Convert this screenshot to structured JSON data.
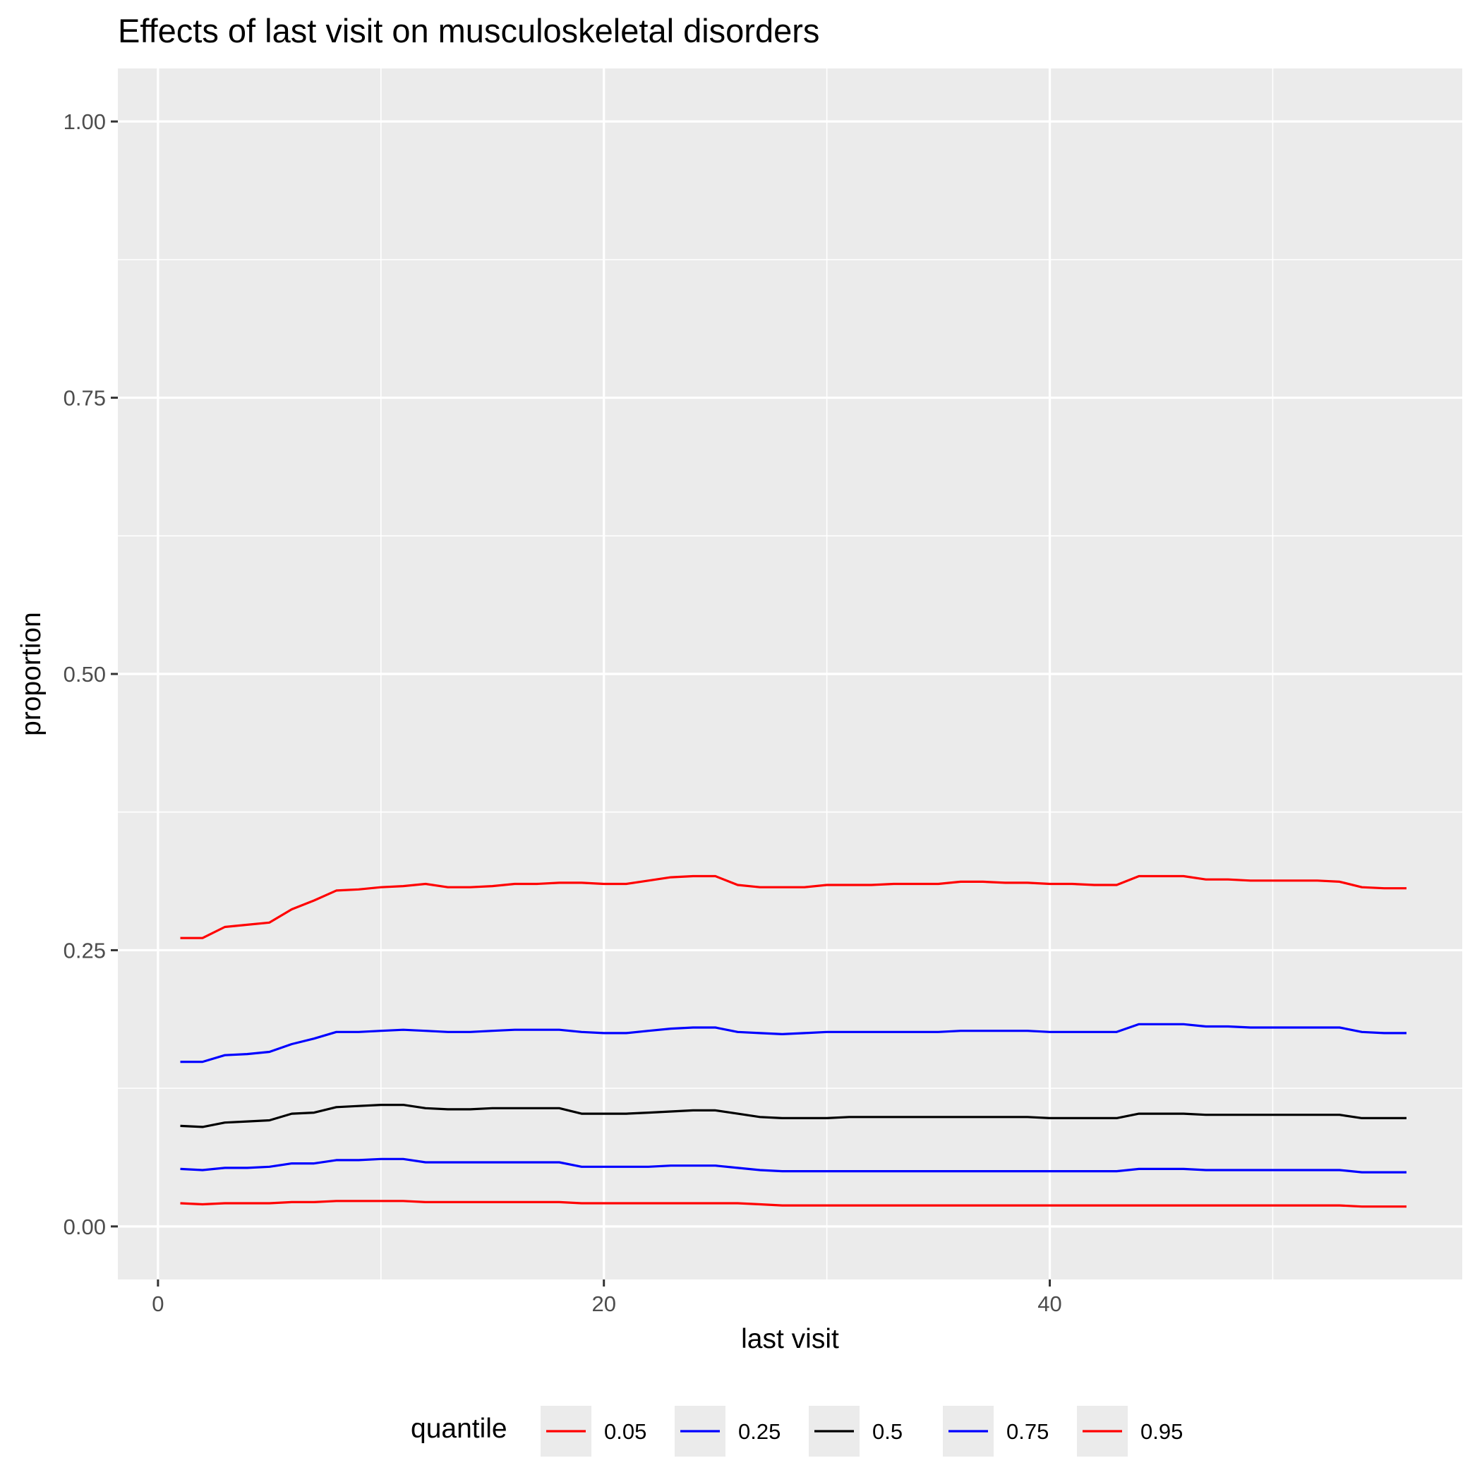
{
  "chart_data": {
    "type": "line",
    "title": "Effects of last visit on musculoskeletal disorders",
    "xlabel": "last visit",
    "ylabel": "proportion",
    "xlim": [
      -1.8,
      58.5
    ],
    "ylim": [
      -0.048,
      1.048
    ],
    "x_ticks": [
      0,
      20,
      40
    ],
    "x_tick_labels": [
      "0",
      "20",
      "40"
    ],
    "y_ticks": [
      0,
      0.25,
      0.5,
      0.75,
      1
    ],
    "y_tick_labels": [
      "0.00",
      "0.25",
      "0.50",
      "0.75",
      "1.00"
    ],
    "grid": true,
    "legend_position": "bottom",
    "legend_title": "quantile",
    "x": [
      1,
      2,
      3,
      4,
      5,
      6,
      7,
      8,
      9,
      10,
      11,
      12,
      13,
      14,
      15,
      16,
      17,
      18,
      19,
      20,
      21,
      22,
      23,
      24,
      25,
      26,
      27,
      28,
      29,
      30,
      31,
      32,
      33,
      34,
      35,
      36,
      37,
      38,
      39,
      40,
      41,
      42,
      43,
      44,
      45,
      46,
      47,
      48,
      49,
      50,
      51,
      52,
      53,
      54,
      55,
      56
    ],
    "series": [
      {
        "name": "0.05",
        "color": "#ff0000",
        "values": [
          0.021,
          0.02,
          0.021,
          0.021,
          0.021,
          0.022,
          0.022,
          0.023,
          0.023,
          0.023,
          0.023,
          0.022,
          0.022,
          0.022,
          0.022,
          0.022,
          0.022,
          0.022,
          0.021,
          0.021,
          0.021,
          0.021,
          0.021,
          0.021,
          0.021,
          0.021,
          0.02,
          0.019,
          0.019,
          0.019,
          0.019,
          0.019,
          0.019,
          0.019,
          0.019,
          0.019,
          0.019,
          0.019,
          0.019,
          0.019,
          0.019,
          0.019,
          0.019,
          0.019,
          0.019,
          0.019,
          0.019,
          0.019,
          0.019,
          0.019,
          0.019,
          0.019,
          0.019,
          0.018,
          0.018,
          0.018
        ]
      },
      {
        "name": "0.25",
        "color": "#0000ff",
        "values": [
          0.052,
          0.051,
          0.053,
          0.053,
          0.054,
          0.057,
          0.057,
          0.06,
          0.06,
          0.061,
          0.061,
          0.058,
          0.058,
          0.058,
          0.058,
          0.058,
          0.058,
          0.058,
          0.054,
          0.054,
          0.054,
          0.054,
          0.055,
          0.055,
          0.055,
          0.053,
          0.051,
          0.05,
          0.05,
          0.05,
          0.05,
          0.05,
          0.05,
          0.05,
          0.05,
          0.05,
          0.05,
          0.05,
          0.05,
          0.05,
          0.05,
          0.05,
          0.05,
          0.052,
          0.052,
          0.052,
          0.051,
          0.051,
          0.051,
          0.051,
          0.051,
          0.051,
          0.051,
          0.049,
          0.049,
          0.049
        ]
      },
      {
        "name": "0.5",
        "color": "#000000",
        "values": [
          0.091,
          0.09,
          0.094,
          0.095,
          0.096,
          0.102,
          0.103,
          0.108,
          0.109,
          0.11,
          0.11,
          0.107,
          0.106,
          0.106,
          0.107,
          0.107,
          0.107,
          0.107,
          0.102,
          0.102,
          0.102,
          0.103,
          0.104,
          0.105,
          0.105,
          0.102,
          0.099,
          0.098,
          0.098,
          0.098,
          0.099,
          0.099,
          0.099,
          0.099,
          0.099,
          0.099,
          0.099,
          0.099,
          0.099,
          0.098,
          0.098,
          0.098,
          0.098,
          0.102,
          0.102,
          0.102,
          0.101,
          0.101,
          0.101,
          0.101,
          0.101,
          0.101,
          0.101,
          0.098,
          0.098,
          0.098
        ]
      },
      {
        "name": "0.75",
        "color": "#0000ff",
        "values": [
          0.149,
          0.149,
          0.155,
          0.156,
          0.158,
          0.165,
          0.17,
          0.176,
          0.176,
          0.177,
          0.178,
          0.177,
          0.176,
          0.176,
          0.177,
          0.178,
          0.178,
          0.178,
          0.176,
          0.175,
          0.175,
          0.177,
          0.179,
          0.18,
          0.18,
          0.176,
          0.175,
          0.174,
          0.175,
          0.176,
          0.176,
          0.176,
          0.176,
          0.176,
          0.176,
          0.177,
          0.177,
          0.177,
          0.177,
          0.176,
          0.176,
          0.176,
          0.176,
          0.183,
          0.183,
          0.183,
          0.181,
          0.181,
          0.18,
          0.18,
          0.18,
          0.18,
          0.18,
          0.176,
          0.175,
          0.175
        ]
      },
      {
        "name": "0.95",
        "color": "#ff0000",
        "values": [
          0.261,
          0.261,
          0.271,
          0.273,
          0.275,
          0.287,
          0.295,
          0.304,
          0.305,
          0.307,
          0.308,
          0.31,
          0.307,
          0.307,
          0.308,
          0.31,
          0.31,
          0.311,
          0.311,
          0.31,
          0.31,
          0.313,
          0.316,
          0.317,
          0.317,
          0.309,
          0.307,
          0.307,
          0.307,
          0.309,
          0.309,
          0.309,
          0.31,
          0.31,
          0.31,
          0.312,
          0.312,
          0.311,
          0.311,
          0.31,
          0.31,
          0.309,
          0.309,
          0.317,
          0.317,
          0.317,
          0.314,
          0.314,
          0.313,
          0.313,
          0.313,
          0.313,
          0.312,
          0.307,
          0.306,
          0.306
        ]
      }
    ]
  }
}
